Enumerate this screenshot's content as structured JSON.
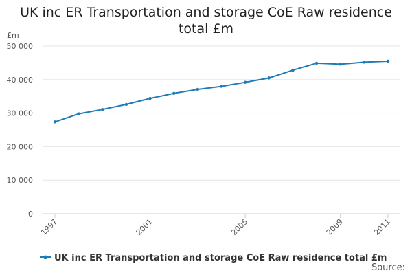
{
  "chart_data": {
    "type": "line",
    "title": "UK inc ER Transportation and storage CoE Raw residence total £m",
    "ylabel": "£m",
    "xlabel": "",
    "x": [
      1997,
      1998,
      1999,
      2000,
      2001,
      2002,
      2003,
      2004,
      2005,
      2006,
      2007,
      2008,
      2009,
      2010,
      2011
    ],
    "x_tick_labels": [
      "1997",
      "2001",
      "2005",
      "2009",
      "2011"
    ],
    "x_tick_values": [
      1997,
      2001,
      2005,
      2009,
      2011
    ],
    "y_tick_labels": [
      "0",
      "10 000",
      "20 000",
      "30 000",
      "40 000",
      "50 000"
    ],
    "y_tick_values": [
      0,
      10000,
      20000,
      30000,
      40000,
      50000
    ],
    "xlim": [
      1997,
      2011
    ],
    "ylim": [
      0,
      50000
    ],
    "grid": true,
    "legend_position": "bottom",
    "series": [
      {
        "name": "UK inc ER Transportation and storage CoE Raw residence total £m",
        "color": "#1f7bb6",
        "values": [
          27400,
          29800,
          31100,
          32600,
          34400,
          35900,
          37100,
          38000,
          39200,
          40500,
          42800,
          44900,
          44600,
          45200,
          45500
        ]
      }
    ],
    "source_label": "Source:"
  }
}
